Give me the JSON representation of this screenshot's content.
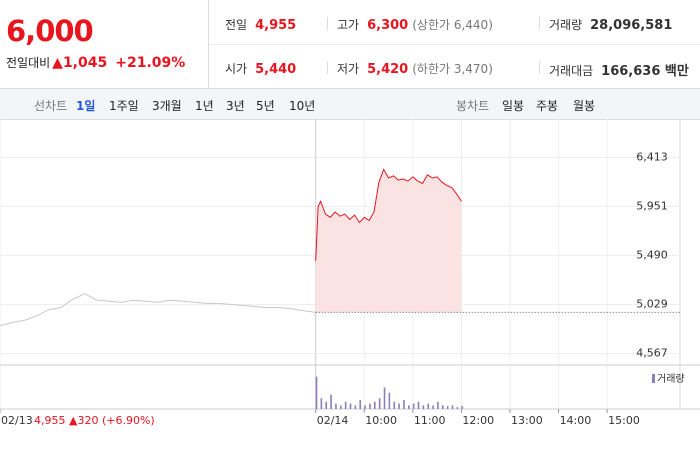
{
  "header": {
    "price": "6,000",
    "change_label": "전일대비",
    "change": "▲1,045",
    "rate": "+21.09%",
    "stats": [
      [
        {
          "label": "전일",
          "value": "4,955"
        },
        {
          "label": "고가",
          "value": "6,300",
          "note": "(상한가 6,440)"
        },
        {
          "label": "거래량",
          "value": "28,096,581"
        }
      ],
      [
        {
          "label": "시가",
          "value": "5,440"
        },
        {
          "label": "저가",
          "value": "5,420",
          "note": "(하한가 3,470)"
        },
        {
          "label": "거래대금",
          "value": "166,636 백만"
        }
      ]
    ]
  },
  "tabs": {
    "line_label": "선차트",
    "periods": [
      "1일",
      "1주일",
      "3개월",
      "1년",
      "3년",
      "5년",
      "10년"
    ],
    "candle_label": "봉차트",
    "candles": [
      "일봉",
      "주봉",
      "월봉"
    ]
  },
  "chart_data": {
    "type": "line",
    "ylim": [
      4460,
      6690
    ],
    "yticks": [
      {
        "value": 4567,
        "label": "4,567"
      },
      {
        "value": 5029,
        "label": "5,029"
      },
      {
        "value": 5490,
        "label": "5,490"
      },
      {
        "value": 5951,
        "label": "5,951"
      },
      {
        "value": 6413,
        "label": "6,413"
      }
    ],
    "xlim": [
      0,
      14
    ],
    "xticks": [
      {
        "value": 0,
        "label": "02/13"
      },
      {
        "value": 6.5,
        "label": "02/14"
      },
      {
        "value": 7.5,
        "label": "10:00"
      },
      {
        "value": 8.5,
        "label": "11:00"
      },
      {
        "value": 9.5,
        "label": "12:00"
      },
      {
        "value": 10.5,
        "label": "13:00"
      },
      {
        "value": 11.5,
        "label": "14:00"
      },
      {
        "value": 12.5,
        "label": "15:00"
      }
    ],
    "prev_close": 4955,
    "series": [
      {
        "color": "#c8c8c8",
        "x": [
          0,
          0.25,
          0.5,
          0.75,
          1,
          1.25,
          1.5,
          1.75,
          2,
          2.25,
          2.5,
          2.75,
          3,
          3.25,
          3.5,
          3.75,
          4,
          4.25,
          4.5,
          4.75,
          5,
          5.25,
          5.5,
          5.75,
          6,
          6.25,
          6.5
        ],
        "values": [
          4830,
          4860,
          4880,
          4920,
          4980,
          5000,
          5080,
          5130,
          5070,
          5060,
          5050,
          5070,
          5060,
          5050,
          5070,
          5060,
          5050,
          5040,
          5040,
          5030,
          5020,
          5010,
          5000,
          5000,
          4990,
          4970,
          4955
        ]
      },
      {
        "color": "#e8141e",
        "x": [
          6.5,
          6.55,
          6.6,
          6.7,
          6.8,
          6.9,
          7.0,
          7.1,
          7.2,
          7.3,
          7.4,
          7.5,
          7.6,
          7.7,
          7.8,
          7.9,
          8.0,
          8.1,
          8.2,
          8.3,
          8.4,
          8.5,
          8.6,
          8.7,
          8.8,
          8.9,
          9.0,
          9.1,
          9.2,
          9.3,
          9.4,
          9.5
        ],
        "values": [
          5440,
          5950,
          6000,
          5880,
          5850,
          5900,
          5860,
          5880,
          5830,
          5870,
          5800,
          5850,
          5820,
          5900,
          6180,
          6300,
          6220,
          6240,
          6200,
          6210,
          6190,
          6230,
          6190,
          6170,
          6250,
          6220,
          6230,
          6180,
          6150,
          6130,
          6070,
          6000
        ]
      }
    ],
    "volume": {
      "name": "거래량",
      "color": "#8c7fb8",
      "ylim": [
        0,
        100
      ],
      "x": [
        6.5,
        6.6,
        6.7,
        6.8,
        6.9,
        7.0,
        7.1,
        7.2,
        7.3,
        7.4,
        7.5,
        7.6,
        7.7,
        7.8,
        7.9,
        8.0,
        8.1,
        8.2,
        8.3,
        8.4,
        8.5,
        8.6,
        8.7,
        8.8,
        8.9,
        9.0,
        9.1,
        9.2,
        9.3,
        9.4,
        9.5
      ],
      "values": [
        90,
        30,
        20,
        40,
        15,
        10,
        20,
        15,
        10,
        25,
        10,
        15,
        20,
        30,
        60,
        45,
        20,
        15,
        25,
        10,
        15,
        20,
        10,
        15,
        10,
        20,
        10,
        8,
        10,
        5,
        8
      ]
    },
    "footer": "4,955 ▲320 (+6.90%)"
  }
}
